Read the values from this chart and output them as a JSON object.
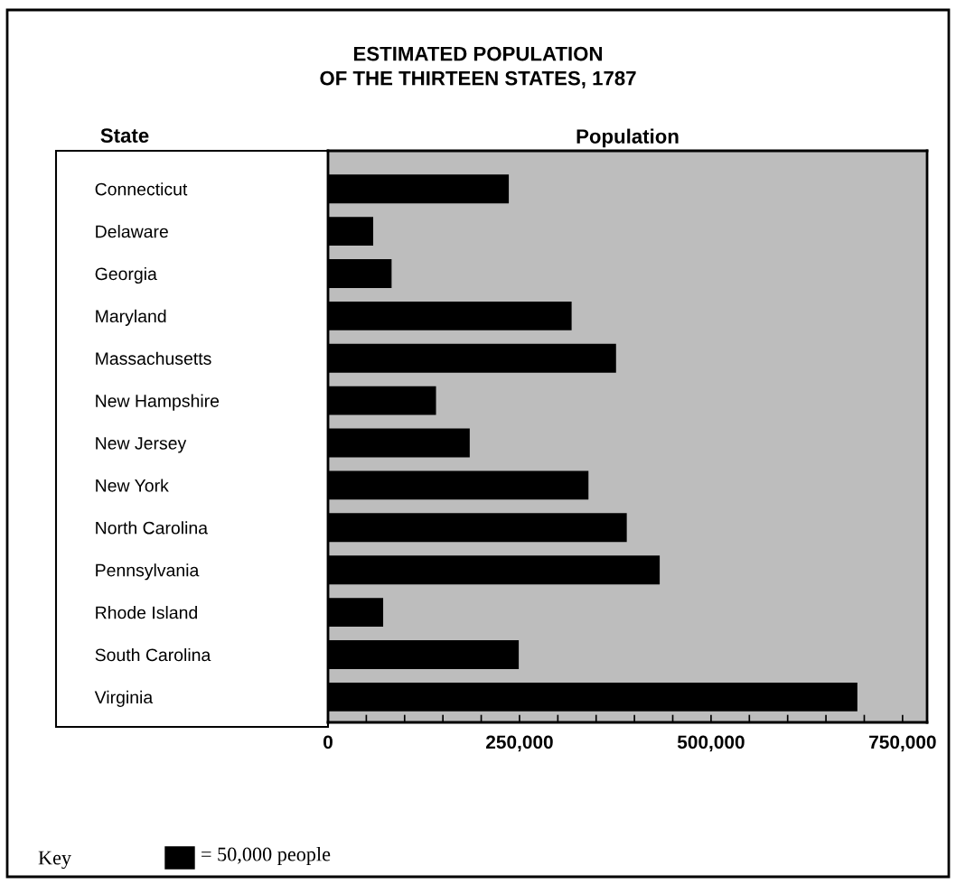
{
  "chart_data": {
    "type": "bar",
    "orientation": "horizontal",
    "title": "ESTIMATED POPULATION\nOF THE THIRTEEN STATES, 1787",
    "xlabel": "Population",
    "categories": [
      "Connecticut",
      "Delaware",
      "Georgia",
      "Maryland",
      "Massachusetts",
      "New Hampshire",
      "New Jersey",
      "New York",
      "North Carolina",
      "Pennsylvania",
      "Rhode Island",
      "South Carolina",
      "Virginia"
    ],
    "values": [
      236000,
      59000,
      83000,
      318000,
      376000,
      141000,
      185000,
      340000,
      390000,
      433000,
      72000,
      249000,
      691000
    ],
    "color": "#000000",
    "xlim": [
      0,
      782000
    ],
    "xticks": [
      0,
      {
        "value": 50000,
        "label": null
      },
      {
        "value": 100000,
        "label": null
      },
      {
        "value": 150000,
        "label": null
      },
      {
        "value": 200000,
        "label": null
      },
      {
        "value": 250000,
        "label": "250,000"
      },
      {
        "value": 300000,
        "label": null
      },
      {
        "value": 350000,
        "label": null
      },
      {
        "value": 400000,
        "label": null
      },
      {
        "value": 450000,
        "label": null
      },
      {
        "value": 500000,
        "label": "500,000"
      },
      {
        "value": 550000,
        "label": null
      },
      {
        "value": 600000,
        "label": null
      },
      {
        "value": 650000,
        "label": null
      },
      {
        "value": 700000,
        "label": null
      },
      {
        "value": 750000,
        "label": "750,000"
      }
    ],
    "grid": false,
    "annotations": [
      "State",
      "Key",
      "= 50,000 people"
    ]
  }
}
